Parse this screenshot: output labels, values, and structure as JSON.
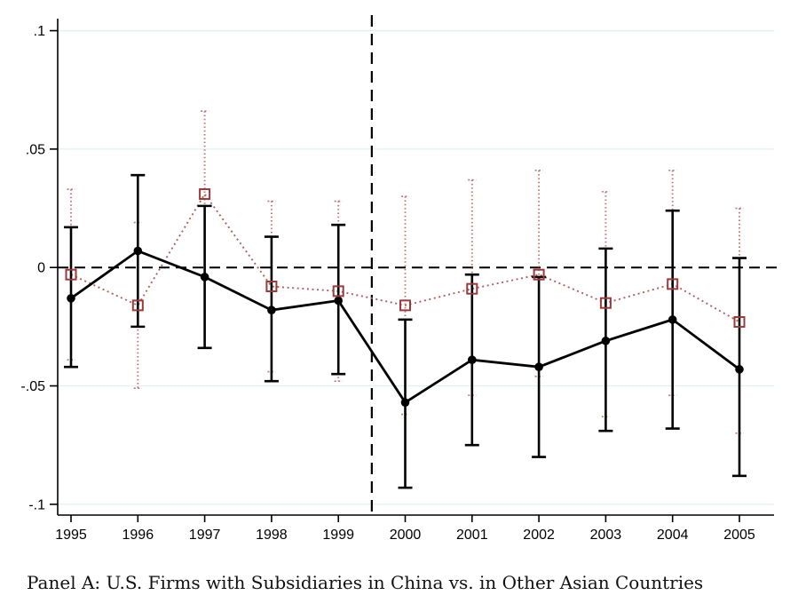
{
  "chart_data": {
    "type": "line",
    "title": "",
    "caption": "Panel A: U.S. Firms with Subsidiaries in China vs. in Other Asian Countries",
    "x": [
      1995,
      1996,
      1997,
      1998,
      1999,
      2000,
      2001,
      2002,
      2003,
      2004,
      2005
    ],
    "xtick_labels": [
      "1995",
      "1996",
      "1997",
      "1998",
      "1999",
      "2000",
      "2001",
      "2002",
      "2003",
      "2004",
      "2005"
    ],
    "ytick_labels": [
      ".1",
      ".05",
      "0",
      "-.05",
      "-.1"
    ],
    "ytick_values": [
      0.1,
      0.05,
      0,
      -0.05,
      -0.1
    ],
    "ylim": [
      -0.107,
      0.107
    ],
    "grid": true,
    "legend_position": "none",
    "reference_lines": {
      "horizontal_y": 0,
      "vertical_x": 1999.5,
      "style": "dashed",
      "color": "#000000"
    },
    "series": [
      {
        "name": "solid-black-circles",
        "marker": "filled-circle",
        "line_style": "solid",
        "color": "#000000",
        "ci_color": "#000000",
        "values": [
          -0.013,
          0.007,
          -0.004,
          -0.018,
          -0.014,
          -0.057,
          -0.039,
          -0.042,
          -0.031,
          -0.022,
          -0.043
        ],
        "ci_low": [
          -0.042,
          -0.025,
          -0.034,
          -0.048,
          -0.045,
          -0.093,
          -0.075,
          -0.08,
          -0.069,
          -0.068,
          -0.088
        ],
        "ci_high": [
          0.017,
          0.039,
          0.026,
          0.013,
          0.018,
          -0.022,
          -0.003,
          -0.004,
          0.008,
          0.024,
          0.004
        ]
      },
      {
        "name": "dotted-maroon-squares",
        "marker": "hollow-square",
        "line_style": "dotted",
        "color": "#9b3a3a",
        "ci_color": "#bd7676",
        "values": [
          -0.003,
          -0.016,
          0.031,
          -0.008,
          -0.01,
          -0.016,
          -0.009,
          -0.003,
          -0.015,
          -0.007,
          -0.023
        ],
        "ci_low": [
          -0.039,
          -0.051,
          -0.004,
          -0.044,
          -0.048,
          -0.062,
          -0.054,
          -0.046,
          -0.063,
          -0.054,
          -0.07
        ],
        "ci_high": [
          0.033,
          0.019,
          0.066,
          0.028,
          0.028,
          0.03,
          0.037,
          0.041,
          0.032,
          0.041,
          0.025
        ]
      }
    ],
    "colors": {
      "gridline": "#e6efef",
      "axis": "#000000",
      "background": "#ffffff"
    }
  }
}
